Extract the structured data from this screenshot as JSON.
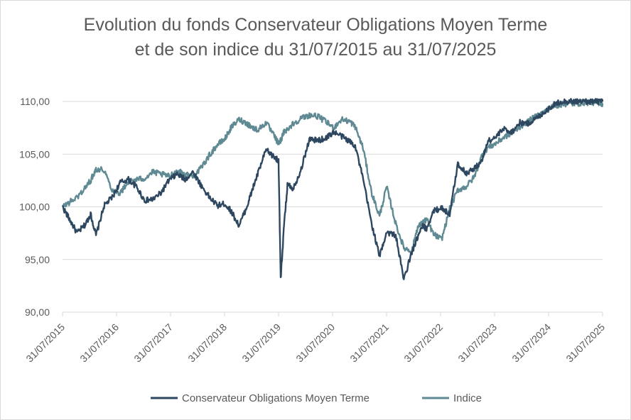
{
  "chart_data": {
    "type": "line",
    "title_line1": "Evolution du fonds Conservateur Obligations Moyen Terme",
    "title_line2": "et de son indice du 31/07/2015 au 31/07/2025",
    "xlabel": "",
    "ylabel": "",
    "ylim": [
      90,
      110
    ],
    "y_ticks": [
      "90,00",
      "95,00",
      "100,00",
      "105,00",
      "110,00"
    ],
    "y_tick_values": [
      90,
      95,
      100,
      105,
      110
    ],
    "x_ticks": [
      "31/07/2015",
      "31/07/2016",
      "31/07/2017",
      "31/07/2018",
      "31/07/2019",
      "31/07/2020",
      "31/07/2021",
      "31/07/2022",
      "31/07/2023",
      "31/07/2024",
      "31/07/2025"
    ],
    "grid": "horizontal",
    "legend_position": "bottom",
    "colors": {
      "fund": "#2e4760",
      "index": "#5f8a93",
      "grid": "#d9d9d9",
      "text": "#595959"
    },
    "x_years": [
      2015.58,
      2015.7,
      2015.85,
      2016.0,
      2016.1,
      2016.2,
      2016.35,
      2016.5,
      2016.65,
      2016.8,
      2016.95,
      2017.1,
      2017.25,
      2017.4,
      2017.55,
      2017.7,
      2017.85,
      2018.0,
      2018.15,
      2018.3,
      2018.45,
      2018.58,
      2018.7,
      2018.85,
      2019.0,
      2019.1,
      2019.2,
      2019.35,
      2019.5,
      2019.58,
      2019.62,
      2019.68,
      2019.75,
      2019.85,
      2020.0,
      2020.15,
      2020.3,
      2020.45,
      2020.6,
      2020.75,
      2020.9,
      2021.0,
      2021.15,
      2021.3,
      2021.45,
      2021.58,
      2021.75,
      2021.9,
      2022.05,
      2022.15,
      2022.25,
      2022.32,
      2022.45,
      2022.6,
      2022.75,
      2022.9,
      2023.05,
      2023.2,
      2023.35,
      2023.45,
      2023.6,
      2023.75,
      2023.9,
      2024.05,
      2024.2,
      2024.35,
      2024.5,
      2024.65,
      2024.8,
      2024.95,
      2025.1,
      2025.25,
      2025.4,
      2025.5,
      2025.58
    ],
    "series": [
      {
        "name": "Conservateur Obligations Moyen Terme",
        "values": [
          100.0,
          98.9,
          97.5,
          98.3,
          99.3,
          97.3,
          100.1,
          100.9,
          102.3,
          102.6,
          101.9,
          100.6,
          100.7,
          101.3,
          102.5,
          103.1,
          102.6,
          103.3,
          102.0,
          100.9,
          100.1,
          100.3,
          99.6,
          98.2,
          100.1,
          101.7,
          103.2,
          105.4,
          104.7,
          104.4,
          93.1,
          98.1,
          102.3,
          101.7,
          103.6,
          106.4,
          106.3,
          106.5,
          107.1,
          106.7,
          106.2,
          105.8,
          102.5,
          98.5,
          95.3,
          97.6,
          97.3,
          93.1,
          95.7,
          97.0,
          98.2,
          97.9,
          99.6,
          99.9,
          99.3,
          104.1,
          103.2,
          103.6,
          104.4,
          106.2,
          106.6,
          107.4,
          107.1,
          108.0,
          107.9,
          108.4,
          109.0,
          109.6,
          110.0,
          110.0,
          110.0,
          110.0,
          110.0,
          110.0,
          110.0
        ]
      },
      {
        "name": "Indice",
        "values": [
          100.0,
          100.4,
          100.9,
          101.8,
          102.5,
          103.6,
          103.5,
          101.6,
          101.3,
          102.4,
          102.6,
          102.7,
          103.3,
          103.1,
          102.9,
          103.4,
          103.1,
          102.9,
          103.7,
          104.9,
          105.9,
          106.4,
          107.5,
          108.3,
          107.9,
          107.5,
          107.3,
          108.0,
          106.7,
          106.0,
          106.3,
          107.1,
          107.4,
          107.9,
          108.4,
          108.7,
          108.6,
          108.1,
          107.5,
          108.3,
          108.1,
          107.6,
          105.5,
          101.4,
          99.1,
          101.9,
          98.4,
          96.1,
          95.8,
          98.0,
          98.5,
          98.8,
          97.4,
          96.9,
          99.8,
          101.6,
          101.9,
          102.8,
          104.9,
          105.6,
          106.0,
          106.6,
          107.0,
          107.6,
          108.1,
          108.6,
          109.0,
          109.5,
          109.7,
          109.8,
          109.8,
          109.9,
          109.9,
          109.9,
          109.8
        ]
      }
    ]
  }
}
